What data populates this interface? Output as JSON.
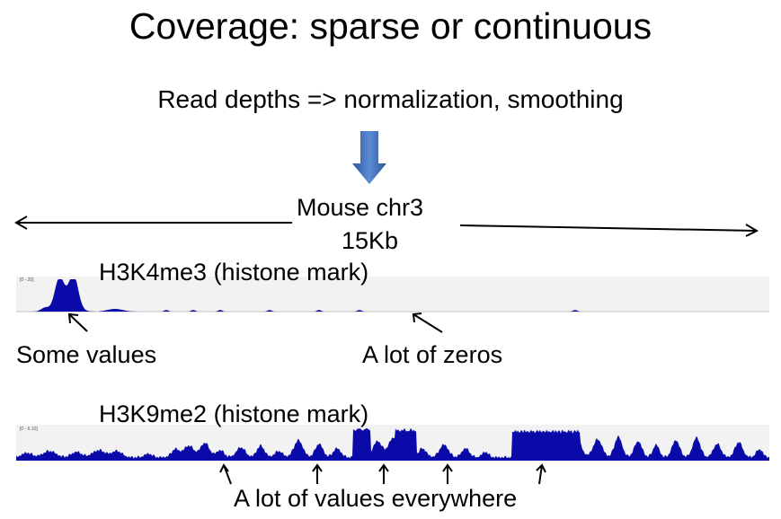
{
  "title": "Coverage: sparse or continuous",
  "subtitle": "Read depths => normalization, smoothing",
  "region": {
    "chromosome": "Mouse chr3",
    "span": "15Kb"
  },
  "tracks": [
    {
      "label": "H3K4me3 (histone mark)",
      "range": "[0 - 20]",
      "color": "#0a0aa8"
    },
    {
      "label": "H3K9me2 (histone mark)",
      "range": "[0 - 6.10]",
      "color": "#0a0aa8"
    }
  ],
  "annotations": {
    "some_values": "Some values",
    "zeros": "A lot of zeros",
    "everywhere": "A lot of values everywhere"
  },
  "colors": {
    "down_arrow": "#4472c4",
    "track_bg": "#f2f2f2",
    "signal": "#0a0aa8"
  }
}
